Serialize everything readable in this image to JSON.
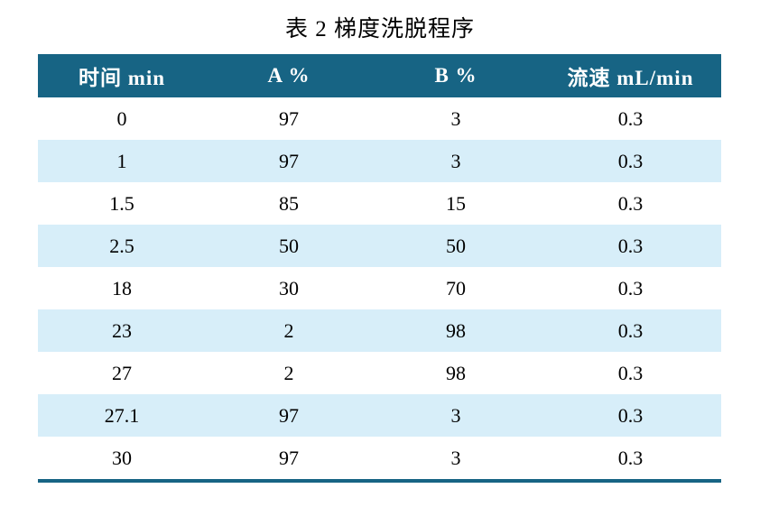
{
  "title": "表 2  梯度洗脱程序",
  "table": {
    "headers": [
      "时间  min",
      "A %",
      "B %",
      "流速  mL/min"
    ],
    "rows": [
      [
        "0",
        "97",
        "3",
        "0.3"
      ],
      [
        "1",
        "97",
        "3",
        "0.3"
      ],
      [
        "1.5",
        "85",
        "15",
        "0.3"
      ],
      [
        "2.5",
        "50",
        "50",
        "0.3"
      ],
      [
        "18",
        "30",
        "70",
        "0.3"
      ],
      [
        "23",
        "2",
        "98",
        "0.3"
      ],
      [
        "27",
        "2",
        "98",
        "0.3"
      ],
      [
        "27.1",
        "97",
        "3",
        "0.3"
      ],
      [
        "30",
        "97",
        "3",
        "0.3"
      ]
    ]
  },
  "colors": {
    "header_bg": "#176484",
    "header_text": "#ffffff",
    "row_bg": "#ffffff",
    "row_alt_bg": "#d7eef9",
    "text": "#000000"
  }
}
